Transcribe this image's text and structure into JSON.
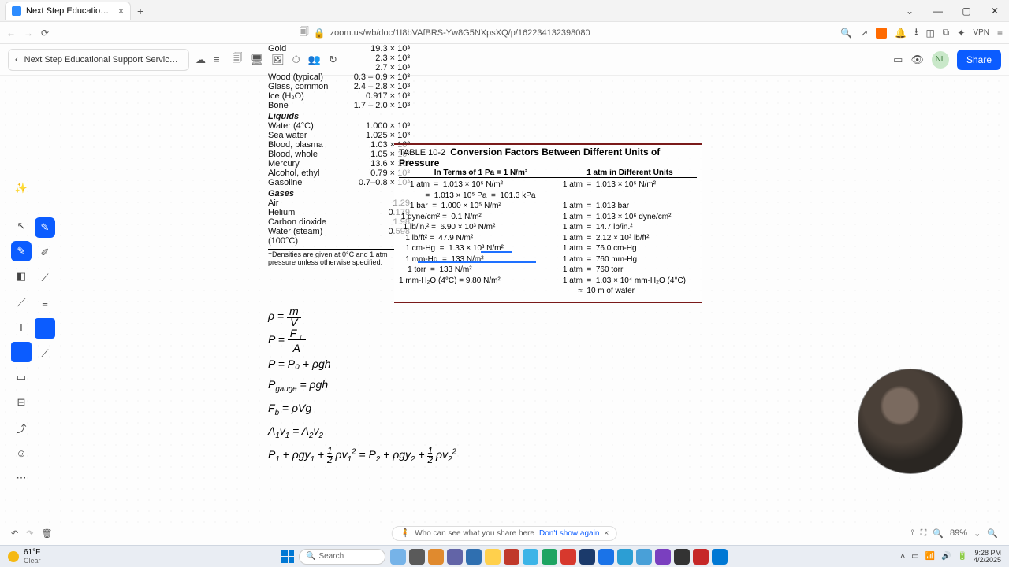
{
  "browser": {
    "tab_title": "Next Step Educational Support",
    "url": "zoom.us/wb/doc/1I8bVAfBRS-Yw8G5NXpsXQ/p/162234132398080",
    "vpn_label": "VPN"
  },
  "app": {
    "breadcrumb": "Next Step Educational Support Services LL…",
    "avatar_initials": "NL",
    "share_label": "Share"
  },
  "density_table": {
    "rows_top": [
      {
        "lbl": "Gold",
        "val": "19.3   × 10³"
      },
      {
        "lbl": "",
        "val": "2.3   × 10³"
      },
      {
        "lbl": "",
        "val": "2.7   × 10³"
      },
      {
        "lbl": "Wood (typical)",
        "val": "0.3 – 0.9 × 10³"
      },
      {
        "lbl": "Glass, common",
        "val": "2.4 – 2.8 × 10³"
      },
      {
        "lbl": "Ice (H₂O)",
        "val": "0.917 × 10³"
      },
      {
        "lbl": "Bone",
        "val": "1.7 – 2.0 × 10³"
      }
    ],
    "cat_liquids": "Liquids",
    "rows_liquids": [
      {
        "lbl": "Water (4°C)",
        "val": "1.000 × 10³"
      },
      {
        "lbl": "Sea water",
        "val": "1.025 × 10³"
      },
      {
        "lbl": "Blood, plasma",
        "val": "1.03   × 10³"
      },
      {
        "lbl": "Blood, whole",
        "val": "1.05   × 10³"
      },
      {
        "lbl": "Mercury",
        "val": "13.6   × 10³"
      },
      {
        "lbl": "Alcohol, ethyl",
        "val": "0.79   × 10³"
      },
      {
        "lbl": "Gasoline",
        "val": "0.7–0.8 × 10³"
      }
    ],
    "cat_gases": "Gases",
    "rows_gases": [
      {
        "lbl": "Air",
        "val": "1.29        "
      },
      {
        "lbl": "Helium",
        "val": "0.179       "
      },
      {
        "lbl": "Carbon dioxide",
        "val": "1.98        "
      },
      {
        "lbl": "Water (steam) (100°C)",
        "val": "0.598       "
      }
    ],
    "footnote": "†Densities are given at 0°C and 1 atm pressure unless otherwise specified."
  },
  "conversion": {
    "table_label": "TABLE 10-2",
    "title": "Conversion Factors Between Different Units of Pressure",
    "header_left": "In Terms of 1 Pa = 1 N/m²",
    "header_right": "1 atm in Different Units",
    "left_lines": "     1 atm  =  1.013 × 10⁵ N/m²\n            =  1.013 × 10⁵ Pa  =  101.3 kPa\n     1 bar  =  1.000 × 10⁵ N/m²\n 1 dyne/cm² =  0.1 N/m²\n  1 lb/in.² =  6.90 × 10³ N/m²\n   1 lb/ft² =  47.9 N/m²\n   1 cm-Hg  =  1.33 × 10³ N/m²\n   1 mm-Hg  =  133 N/m²\n    1 torr  =  133 N/m²\n1 mm-H₂O (4°C) = 9.80 N/m²",
    "right_lines": "1 atm  =  1.013 × 10⁵ N/m²\n\n1 atm  =  1.013 bar\n1 atm  =  1.013 × 10⁶ dyne/cm²\n1 atm  =  14.7 lb/in.²\n1 atm  =  2.12 × 10³ lb/ft²\n1 atm  =  76.0 cm-Hg\n1 atm  =  760 mm-Hg\n1 atm  =  760 torr\n1 atm  =  1.03 × 10⁴ mm-H₂O (4°C)\n       ≈  10 m of water"
  },
  "formulas": {
    "f1": "ρ = m / V",
    "f2": "P = F⊥ / A",
    "f3": "P = P₀ + ρgh",
    "f4": "P_gauge = ρgh",
    "f5": "F_b = ρVg",
    "f6": "A₁v₁ = A₂v₂",
    "f7": "P₁ + ρgy₁ + ½ρv₁² = P₂ + ρgy₂ + ½ρv₂²"
  },
  "footer": {
    "privacy_text": "Who can see what you share here",
    "privacy_link": "Don't show again",
    "zoom_pct": "89%"
  },
  "taskbar": {
    "temp": "61°F",
    "cond": "Clear",
    "search_placeholder": "Search",
    "time": "9:28 PM",
    "date": "4/2/2025",
    "icons": [
      "#76b3e8",
      "#5a5a5a",
      "#e08a2e",
      "#6264a7",
      "#2f6fb0",
      "#ffd04c",
      "#c0392b",
      "#3cb4e7",
      "#1da462",
      "#d7382d",
      "#1b3a6b",
      "#1a73e8",
      "#2c9ed4",
      "#49a0d8",
      "#7a3fbf",
      "#333333",
      "#c62828",
      "#0078d4"
    ]
  }
}
